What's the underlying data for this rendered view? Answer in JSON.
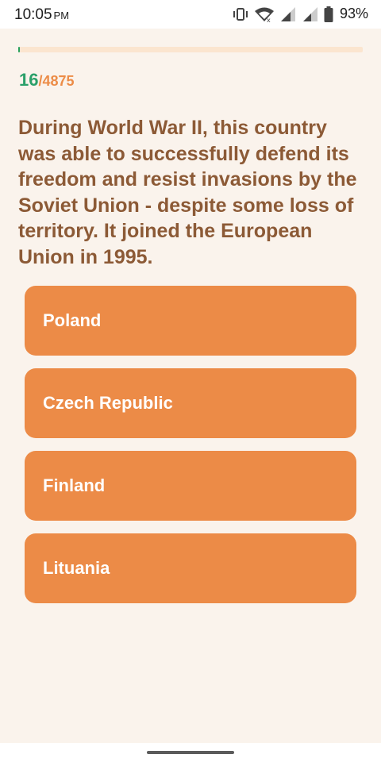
{
  "status_bar": {
    "time": "10:05",
    "ampm": "PM",
    "battery": "93%",
    "icons": [
      "vibrate-icon",
      "wifi-icon",
      "signal-icon",
      "signal-icon",
      "battery-icon"
    ]
  },
  "quiz": {
    "progress_fraction": 0.0033,
    "current": "16",
    "separator": "/",
    "total": "4875",
    "question": "During World War II, this country was able to successfully defend its freedom and resist invasions by the Soviet Union - despite some loss of territory. It joined the European Union in 1995.",
    "answers": [
      "Poland",
      "Czech Republic",
      "Finland",
      "Lituania"
    ]
  },
  "colors": {
    "background": "#faf3ec",
    "answer_button": "#ec8b47",
    "question_text": "#8c5a36",
    "counter_current": "#2aa06a",
    "counter_total": "#ec8c47",
    "progress_fill": "#27a05a",
    "progress_track": "#fbe5cf"
  }
}
